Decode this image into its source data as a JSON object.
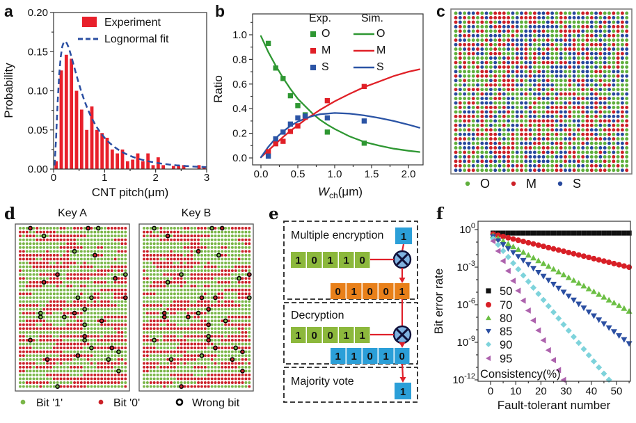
{
  "panel_labels": {
    "a": "a",
    "b": "b",
    "c": "c",
    "d": "d",
    "e": "e",
    "f": "f"
  },
  "chart_data": [
    {
      "id": "a",
      "type": "bar",
      "title": "",
      "xlabel": "CNT pitch(μm)",
      "ylabel": "Probability",
      "xlim": [
        0,
        3
      ],
      "ylim": [
        0,
        0.2
      ],
      "xticks": [
        0,
        1,
        2,
        3
      ],
      "yticks": [
        "0.00",
        "0.05",
        "0.10",
        "0.15",
        "0.20"
      ],
      "grid": false,
      "bin_width": 0.1,
      "bar_color": "#e8202b",
      "bar_x_start": 0.05,
      "values": [
        0.01,
        0.126,
        0.146,
        0.141,
        0.1,
        0.076,
        0.05,
        0.08,
        0.05,
        0.046,
        0.04,
        0.025,
        0.02,
        0.025,
        0.01,
        0.012,
        0.02,
        0.01,
        0.02,
        0.005,
        0.015,
        0.005,
        0.0,
        0.004,
        0.004,
        0.005,
        0.0,
        0.0,
        0.005,
        0.003
      ],
      "fit": {
        "label": "Lognormal fit",
        "mu": -0.7,
        "sigma": 0.9,
        "scale": 0.122,
        "color": "#2b4fa2",
        "style": "dashed"
      },
      "legend": [
        {
          "label": "Experiment",
          "swatch": "bar",
          "color": "#e8202b"
        },
        {
          "label": "Lognormal fit",
          "swatch": "dashed-line",
          "color": "#2b4fa2"
        }
      ]
    },
    {
      "id": "b",
      "type": "line+scatter",
      "xlabel": {
        "main": "W",
        "sub": "ch",
        "suffix": "(μm)"
      },
      "ylabel": "Ratio",
      "xlim": [
        0,
        2.2
      ],
      "ylim": [
        0,
        1.17
      ],
      "xticks": [
        "0.0",
        "0.5",
        "1.0",
        "1.5",
        "2.0"
      ],
      "yticks": [
        "0.0",
        "0.2",
        "0.4",
        "0.6",
        "0.8",
        "1.0"
      ],
      "legend_headers": [
        "Exp.",
        "Sim."
      ],
      "series_exp": [
        {
          "name": "O",
          "color": "#2e9732",
          "points": [
            [
              0.1,
              0.93
            ],
            [
              0.2,
              0.73
            ],
            [
              0.3,
              0.645
            ],
            [
              0.4,
              0.505
            ],
            [
              0.5,
              0.425
            ],
            [
              0.6,
              0.35
            ],
            [
              0.9,
              0.21
            ],
            [
              1.4,
              0.12
            ]
          ]
        },
        {
          "name": "M",
          "color": "#e02027",
          "points": [
            [
              0.1,
              0.05
            ],
            [
              0.2,
              0.115
            ],
            [
              0.3,
              0.135
            ],
            [
              0.4,
              0.215
            ],
            [
              0.5,
              0.26
            ],
            [
              0.6,
              0.33
            ],
            [
              0.9,
              0.465
            ],
            [
              1.4,
              0.58
            ]
          ]
        },
        {
          "name": "S",
          "color": "#2b54a5",
          "points": [
            [
              0.1,
              0.015
            ],
            [
              0.2,
              0.155
            ],
            [
              0.3,
              0.21
            ],
            [
              0.4,
              0.275
            ],
            [
              0.5,
              0.325
            ],
            [
              0.6,
              0.34
            ],
            [
              0.9,
              0.325
            ],
            [
              1.4,
              0.3
            ]
          ]
        }
      ],
      "series_sim": [
        {
          "name": "O",
          "color": "#2e9732",
          "x": [
            0,
            0.1,
            0.2,
            0.3,
            0.4,
            0.5,
            0.6,
            0.7,
            0.8,
            0.9,
            1.0,
            1.2,
            1.4,
            1.6,
            1.8,
            2.0,
            2.15
          ],
          "y": [
            0.99,
            0.86,
            0.75,
            0.65,
            0.56,
            0.48,
            0.42,
            0.36,
            0.31,
            0.27,
            0.235,
            0.175,
            0.13,
            0.1,
            0.075,
            0.058,
            0.048
          ]
        },
        {
          "name": "M",
          "color": "#e02027",
          "x": [
            0,
            0.1,
            0.2,
            0.3,
            0.4,
            0.5,
            0.6,
            0.7,
            0.8,
            0.9,
            1.0,
            1.2,
            1.4,
            1.6,
            1.8,
            2.0,
            2.15
          ],
          "y": [
            0.005,
            0.06,
            0.115,
            0.17,
            0.22,
            0.265,
            0.31,
            0.35,
            0.39,
            0.425,
            0.46,
            0.52,
            0.575,
            0.62,
            0.665,
            0.7,
            0.72
          ]
        },
        {
          "name": "S",
          "color": "#2b54a5",
          "x": [
            0,
            0.1,
            0.2,
            0.3,
            0.4,
            0.5,
            0.6,
            0.7,
            0.8,
            0.9,
            1.0,
            1.2,
            1.4,
            1.6,
            1.8,
            2.0,
            2.15
          ],
          "y": [
            0.005,
            0.09,
            0.16,
            0.215,
            0.26,
            0.295,
            0.32,
            0.34,
            0.355,
            0.36,
            0.365,
            0.36,
            0.345,
            0.325,
            0.3,
            0.27,
            0.245
          ]
        }
      ]
    },
    {
      "id": "f",
      "type": "scatter",
      "xlabel": "Fault-tolerant number",
      "ylabel": "Bit error rate",
      "xlim": [
        -5,
        55.5
      ],
      "xticks": [
        0,
        10,
        20,
        30,
        40,
        50
      ],
      "ylog_ticks": [
        0,
        -3,
        -6,
        -9,
        -12
      ],
      "ylog_min": -12.3,
      "legend_title": "Consistency(%)",
      "x_start": 1,
      "x_step": 2,
      "x_end": 55,
      "series": [
        {
          "name": "50",
          "marker": "square",
          "color": "#111111",
          "log_y_start": -0.28,
          "slope_log_per_x": 0
        },
        {
          "name": "70",
          "marker": "circle",
          "color": "#d81f26",
          "log_y_start": -0.36,
          "slope_log_per_x": -0.049
        },
        {
          "name": "80",
          "marker": "triangle-up",
          "color": "#6cbf44",
          "log_y_start": -0.47,
          "slope_log_per_x": -0.112
        },
        {
          "name": "85",
          "marker": "triangle-down",
          "color": "#2b4fa2",
          "log_y_start": -0.57,
          "slope_log_per_x": -0.158
        },
        {
          "name": "90",
          "marker": "diamond",
          "color": "#7ed3db",
          "log_y_start": -0.72,
          "slope_log_per_x": -0.245
        },
        {
          "name": "95",
          "marker": "triangle-left",
          "color": "#ad62ad",
          "log_y_start": -0.92,
          "slope_log_per_x": -0.396
        }
      ]
    }
  ],
  "panel_c": {
    "grid": {
      "rows": 36,
      "cols": 40,
      "seed": 9,
      "weights": {
        "O": 0.4,
        "M": 0.32,
        "S": 0.28
      },
      "colors": {
        "O": "#5fae3c",
        "M": "#cc2027",
        "S": "#27489c"
      }
    },
    "legend": [
      {
        "label": "O",
        "color": "#5fae3c"
      },
      {
        "label": "M",
        "color": "#cc2027"
      },
      {
        "label": "S",
        "color": "#27489c"
      }
    ]
  },
  "panel_d": {
    "keys": [
      {
        "title": "Key A"
      },
      {
        "title": "Key B"
      }
    ],
    "grid": {
      "rows": 42,
      "cols": 32,
      "seed": 23,
      "p_bit1": 0.52,
      "run_keep_prob": 0.68,
      "p_wrong": 0.016,
      "colors": {
        "bit1": "#7ab648",
        "bit0": "#cb2128"
      },
      "ring_color": "#000000"
    },
    "legend": [
      {
        "label": "Bit '1'",
        "type": "dot",
        "color": "#7ab648"
      },
      {
        "label": "Bit '0'",
        "type": "dot",
        "color": "#cb2128"
      },
      {
        "label": "Wrong bit",
        "type": "ring",
        "color": "#000000"
      }
    ]
  },
  "panel_e": {
    "colors": {
      "green": "#8cb83c",
      "orange": "#e8801a",
      "blue": "#2b9fd8",
      "arrow": "#e0202a",
      "xor_fill": "#7fb2e0",
      "xor_stroke": "#10103a",
      "box_dash": "#222222"
    },
    "boxes": [
      {
        "title": "Multiple encryption",
        "input_bit": "1",
        "key_bits": [
          "1",
          "0",
          "1",
          "1",
          "0"
        ],
        "out_bits": [
          "0",
          "1",
          "0",
          "0",
          "1"
        ],
        "out_color": "orange"
      },
      {
        "title": "Decryption",
        "key_bits": [
          "1",
          "0",
          "0",
          "1",
          "1"
        ],
        "out_bits": [
          "1",
          "1",
          "0",
          "1",
          "0"
        ],
        "out_color": "blue"
      },
      {
        "title": "Majority vote",
        "result_bit": "1"
      }
    ]
  }
}
